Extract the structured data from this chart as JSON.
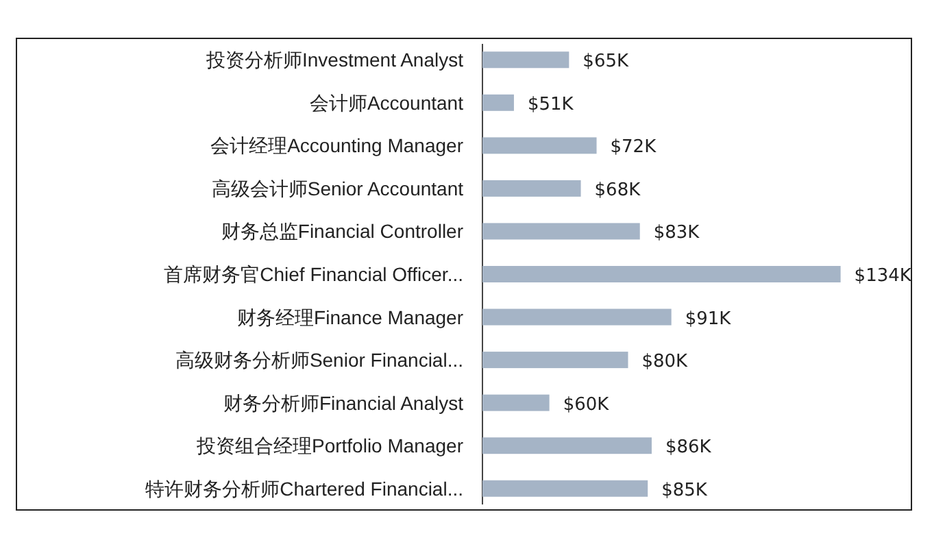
{
  "chart_data": {
    "type": "bar",
    "orientation": "horizontal",
    "tick_labels": "y",
    "categories": [
      "投资分析师Investment Analyst",
      "会计师Accountant",
      "会计经理Accounting Manager",
      "高级会计师Senior Accountant",
      "财务总监Financial Controller",
      "首席财务官Chief Financial Officer...",
      "财务经理Finance Manager",
      "高级财务分析师Senior Financial...",
      "财务分析师Financial Analyst",
      "投资组合经理Portfolio Manager",
      "特许财务分析师Chartered Financial..."
    ],
    "values": [
      65,
      51,
      72,
      68,
      83,
      134,
      91,
      80,
      60,
      86,
      85
    ],
    "value_labels": [
      "$65K",
      "$51K",
      "$72K",
      "$68K",
      "$83K",
      "$134K",
      "$91K",
      "$80K",
      "$60K",
      "$86K",
      "$85K"
    ],
    "color": "#a5b4c6",
    "xlim": [
      43,
      152
    ]
  }
}
